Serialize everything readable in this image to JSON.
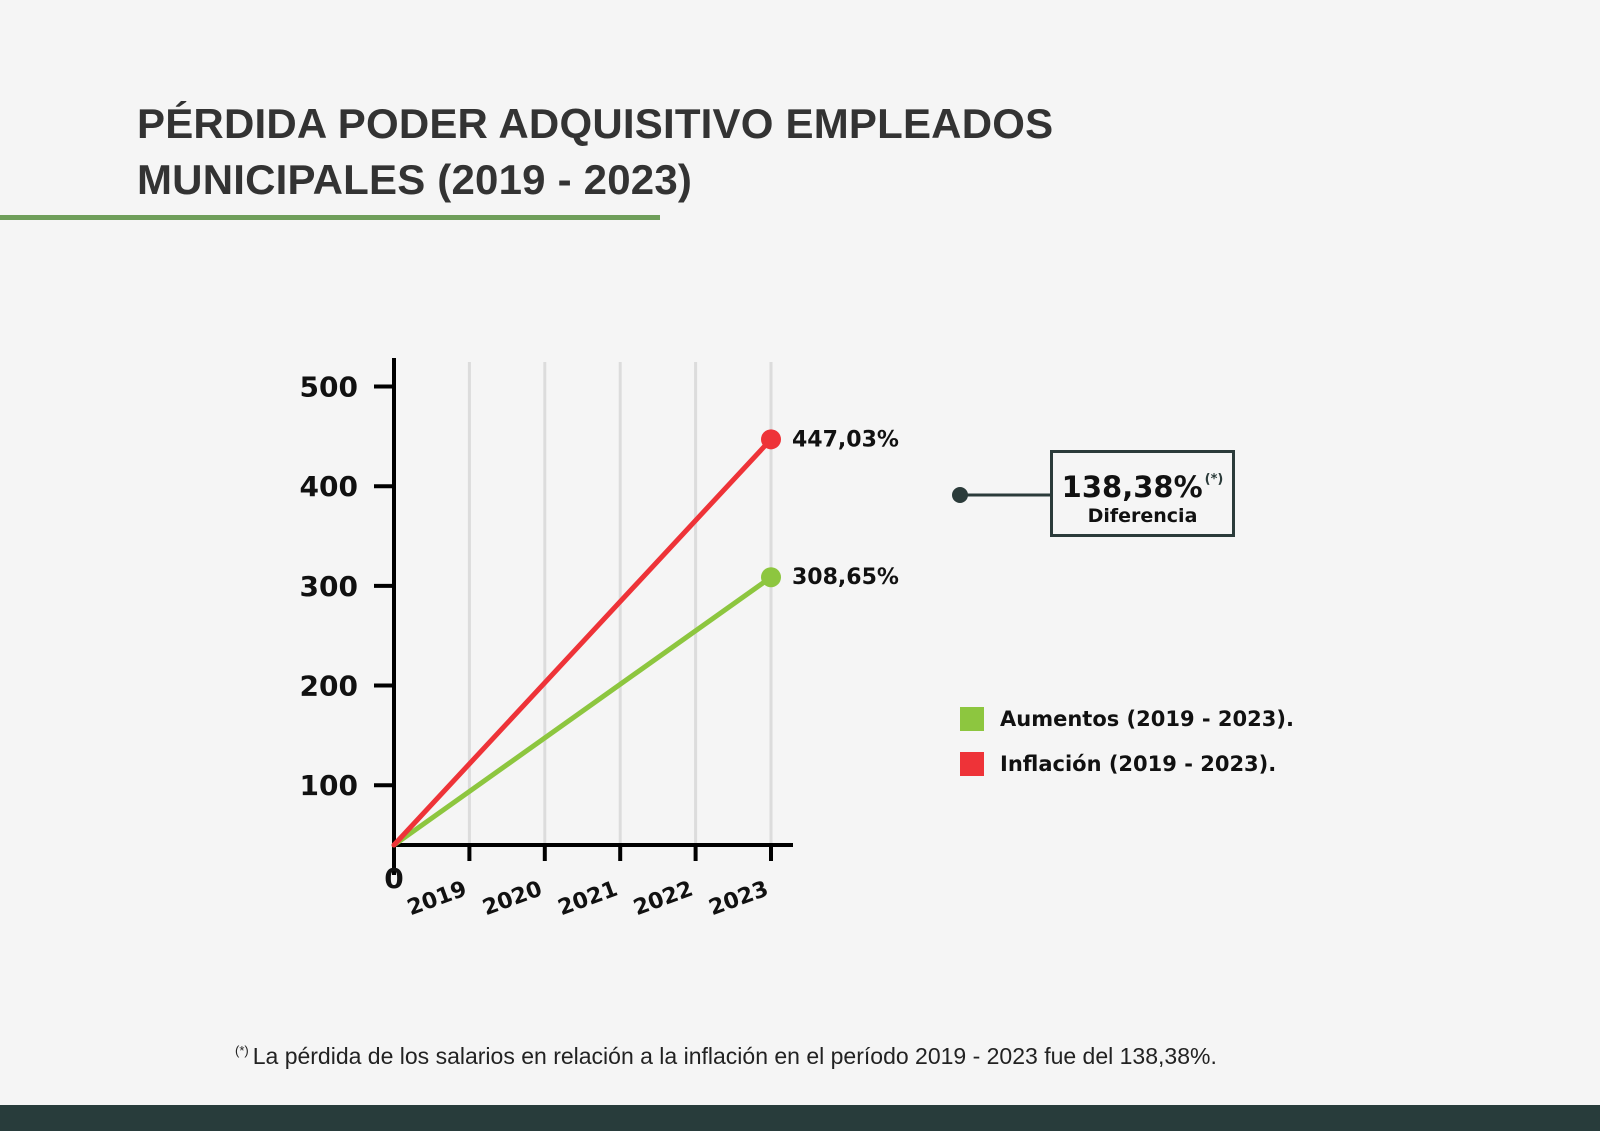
{
  "title": {
    "line1": "PÉRDIDA PODER ADQUISITIVO EMPLEADOS",
    "line2": "MUNICIPALES (2019 - 2023)"
  },
  "chart_data": {
    "type": "line",
    "x": [
      "0",
      "2019",
      "2020",
      "2021",
      "2022",
      "2023"
    ],
    "y_ticks": [
      100,
      200,
      300,
      400,
      500
    ],
    "ylim": [
      40,
      530
    ],
    "grid_vertical": true,
    "series": [
      {
        "name": "Inflación (2019 - 2023).",
        "color": "#ee3338",
        "start": 40,
        "end": 447.03,
        "end_label": "447,03%"
      },
      {
        "name": "Aumentos (2019 - 2023).",
        "color": "#8dc63f",
        "start": 40,
        "end": 308.65,
        "end_label": "308,65%"
      }
    ],
    "legend_position": "right"
  },
  "callout": {
    "value": "138,38%",
    "marker": "(*)",
    "label": "Diferencia",
    "border_color": "#2b3b3a"
  },
  "legend": {
    "items": [
      {
        "label": "Aumentos (2019 - 2023).",
        "color": "#8dc63f"
      },
      {
        "label": "Inflación (2019 - 2023).",
        "color": "#ee3338"
      }
    ]
  },
  "footnote": {
    "marker": "(*)",
    "text": "La pérdida de los salarios en relación a la inflación en el período 2019 - 2023 fue del 138,38%."
  },
  "colors": {
    "accent_green": "#6f9e5a",
    "footer": "#283c3b"
  }
}
